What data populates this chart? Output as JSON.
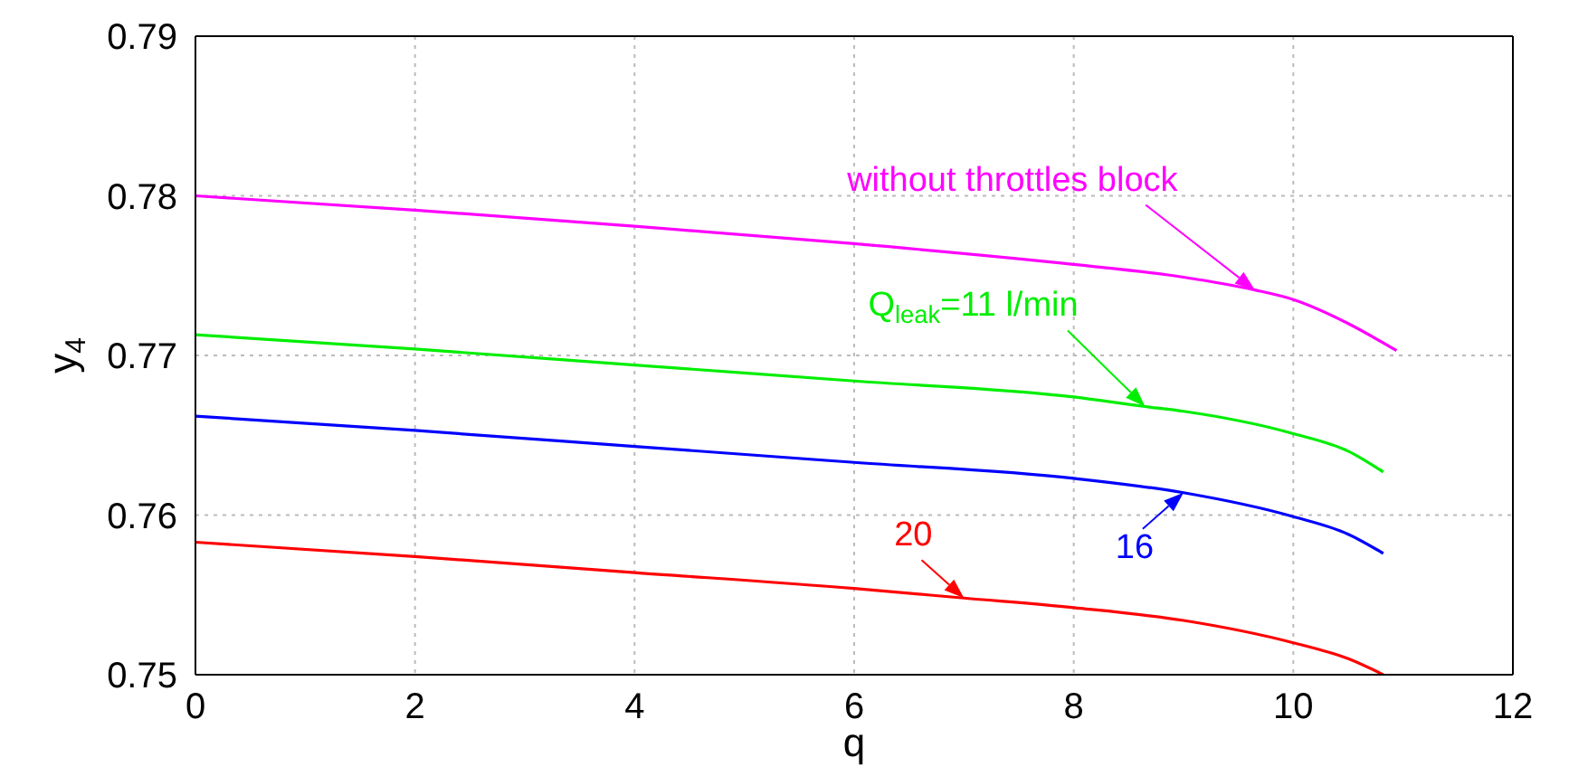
{
  "chart_data": {
    "type": "line",
    "xlabel": "q",
    "ylabel": "y$_{4}$",
    "xlim": [
      0,
      12
    ],
    "xticks": [
      0,
      2,
      4,
      6,
      8,
      10,
      12
    ],
    "ylim": [
      0.75,
      0.79
    ],
    "yticks": [
      0.75,
      0.76,
      0.77,
      0.78,
      0.79
    ],
    "grid": true,
    "line_style": "solid",
    "series": [
      {
        "name": "without throttles block",
        "color": "#ff00ff",
        "x": [
          0,
          2,
          4,
          6,
          8,
          9,
          9.65,
          10,
          10.5,
          10.94
        ],
        "values": [
          0.78,
          0.7791,
          0.7781,
          0.777,
          0.7757,
          0.7749,
          0.7741,
          0.7735,
          0.772,
          0.7703
        ]
      },
      {
        "name": "Q$_{leak}$=11 l/min",
        "color": "#00ee00",
        "x": [
          0,
          2,
          4,
          6,
          8,
          8.65,
          9,
          10,
          10.5,
          10.82
        ],
        "values": [
          0.7713,
          0.7704,
          0.7694,
          0.7684,
          0.7674,
          0.7668,
          0.7665,
          0.7651,
          0.764,
          0.7627
        ]
      },
      {
        "name": "16",
        "color": "#0000ff",
        "x": [
          0,
          2,
          4,
          6,
          8,
          9,
          10,
          10.5,
          10.82
        ],
        "values": [
          0.7662,
          0.7653,
          0.7643,
          0.7633,
          0.7623,
          0.7614,
          0.7599,
          0.7588,
          0.7576
        ]
      },
      {
        "name": "20",
        "color": "#ff0000",
        "x": [
          0,
          2,
          4,
          6,
          7,
          8,
          9,
          10,
          10.5,
          10.82
        ],
        "values": [
          0.7583,
          0.7574,
          0.7564,
          0.7554,
          0.7548,
          0.7542,
          0.7534,
          0.752,
          0.751,
          0.75
        ]
      }
    ]
  }
}
